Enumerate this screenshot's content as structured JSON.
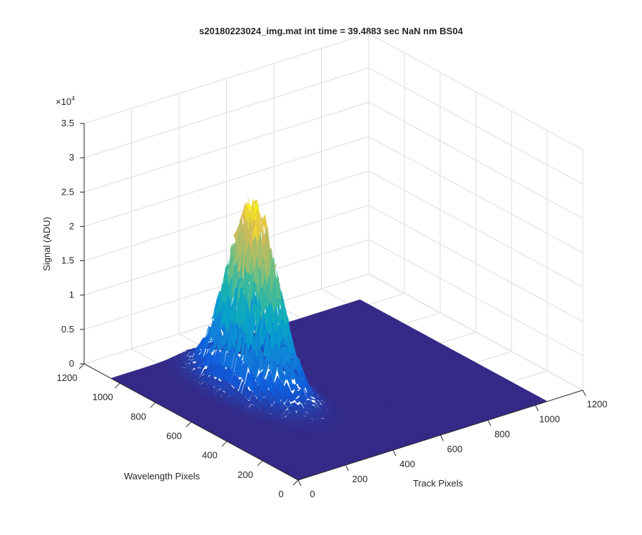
{
  "chart_data": {
    "type": "surface",
    "title": "s20180223024_img.mat int time = 39.4883 sec  NaN nm BS04",
    "xlabel": "Track Pixels",
    "ylabel": "Wavelength Pixels",
    "zlabel": "Signal (ADU)",
    "zexponent_label": "×10",
    "zexponent_power": "4",
    "xlim": [
      0,
      1200
    ],
    "ylim": [
      0,
      1200
    ],
    "zlim": [
      0,
      35000
    ],
    "x_ticks": [
      0,
      200,
      400,
      600,
      800,
      1000,
      1200
    ],
    "y_ticks": [
      0,
      200,
      400,
      600,
      800,
      1000,
      1200
    ],
    "z_ticks": [
      0,
      0.5,
      1,
      1.5,
      2,
      2.5,
      3,
      3.5
    ],
    "x_tick_labels": [
      "0",
      "200",
      "400",
      "600",
      "800",
      "1000",
      "1200"
    ],
    "y_tick_labels": [
      "0",
      "200",
      "400",
      "600",
      "800",
      "1000",
      "1200"
    ],
    "z_tick_labels": [
      "0",
      "0.5",
      "1",
      "1.5",
      "2",
      "2.5",
      "3",
      "3.5"
    ],
    "grid": true,
    "colormap": "parula",
    "data_extent": {
      "x": [
        0,
        1050
      ],
      "y": [
        0,
        1050
      ]
    },
    "baseline_color": "#352a87",
    "peak": {
      "track_center": 330,
      "track_sigma": 55,
      "wavelength_center": 690,
      "wavelength_sigma": 130,
      "max_signal": 25000
    }
  }
}
